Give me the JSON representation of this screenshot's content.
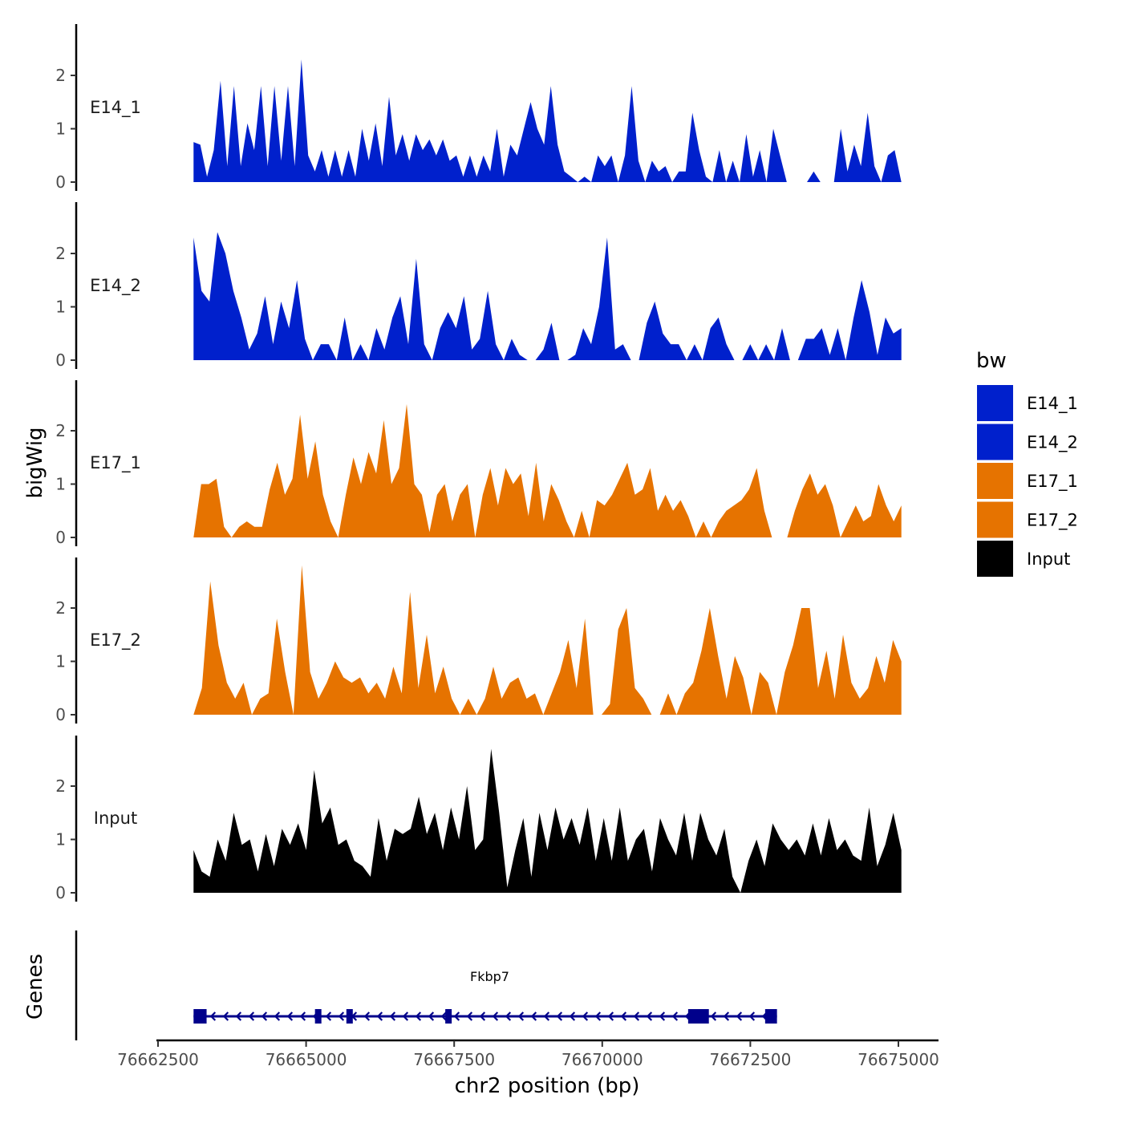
{
  "chart_data": {
    "type": "area",
    "title": "",
    "ylabel": "bigWig",
    "xlabel": "chr2 position (bp)",
    "ylim": [
      0,
      2.9
    ],
    "yticks": [
      0,
      1,
      2
    ],
    "xlim": [
      76662300,
      76675700
    ],
    "xticks": [
      76662500,
      76665000,
      76667500,
      76670000,
      76672500,
      76675000
    ],
    "xtick_labels": [
      "76662500",
      "76665000",
      "76667500",
      "76670000",
      "76672500",
      "76675000"
    ],
    "x_start": 76663100,
    "x_end": 76675050,
    "legend_title": "bw",
    "tracks": [
      {
        "name": "E14_1",
        "color": "#0020CC",
        "values": [
          0.75,
          0.7,
          0.1,
          0.6,
          1.9,
          0.3,
          1.8,
          0.3,
          1.1,
          0.6,
          1.8,
          0.3,
          1.8,
          0.4,
          1.8,
          0.3,
          2.3,
          0.5,
          0.2,
          0.6,
          0.1,
          0.6,
          0.1,
          0.6,
          0.1,
          1.0,
          0.4,
          1.1,
          0.3,
          1.6,
          0.5,
          0.9,
          0.4,
          0.9,
          0.6,
          0.8,
          0.5,
          0.8,
          0.4,
          0.5,
          0.1,
          0.5,
          0.1,
          0.5,
          0.2,
          1.0,
          0.1,
          0.7,
          0.5,
          1.0,
          1.5,
          1.0,
          0.7,
          1.8,
          0.7,
          0.2,
          0.1,
          0.0,
          0.1,
          0.0,
          0.5,
          0.3,
          0.5,
          0.0,
          0.5,
          1.8,
          0.4,
          0.0,
          0.4,
          0.2,
          0.3,
          0.0,
          0.2,
          0.2,
          1.3,
          0.6,
          0.1,
          0.0,
          0.6,
          0.0,
          0.4,
          0.0,
          0.9,
          0.1,
          0.6,
          0.0,
          1.0,
          0.5,
          0.0,
          0.0,
          0.0,
          0.0,
          0.2,
          0.0,
          0.0,
          0.0,
          1.0,
          0.2,
          0.7,
          0.3,
          1.3,
          0.3,
          0.0,
          0.5,
          0.6,
          0.0
        ]
      },
      {
        "name": "E14_2",
        "color": "#0020CC",
        "values": [
          2.3,
          1.3,
          1.1,
          2.4,
          2.0,
          1.3,
          0.8,
          0.2,
          0.5,
          1.2,
          0.3,
          1.1,
          0.6,
          1.5,
          0.4,
          0.0,
          0.3,
          0.3,
          0.0,
          0.8,
          0.0,
          0.3,
          0.0,
          0.6,
          0.2,
          0.8,
          1.2,
          0.3,
          1.9,
          0.3,
          0.0,
          0.6,
          0.9,
          0.6,
          1.2,
          0.2,
          0.4,
          1.3,
          0.3,
          0.0,
          0.4,
          0.1,
          0.0,
          0.0,
          0.2,
          0.7,
          0.0,
          0.0,
          0.1,
          0.6,
          0.3,
          1.0,
          2.3,
          0.2,
          0.3,
          0.0,
          0.0,
          0.7,
          1.1,
          0.5,
          0.3,
          0.3,
          0.0,
          0.3,
          0.0,
          0.6,
          0.8,
          0.3,
          0.0,
          0.0,
          0.3,
          0.0,
          0.3,
          0.0,
          0.6,
          0.0,
          0.0,
          0.4,
          0.4,
          0.6,
          0.1,
          0.6,
          0.0,
          0.8,
          1.5,
          0.9,
          0.1,
          0.8,
          0.5,
          0.6
        ]
      },
      {
        "name": "E17_1",
        "color": "#E67300",
        "values": [
          0.0,
          1.0,
          1.0,
          1.1,
          0.2,
          0.0,
          0.2,
          0.3,
          0.2,
          0.2,
          0.9,
          1.4,
          0.8,
          1.1,
          2.3,
          1.1,
          1.8,
          0.8,
          0.3,
          0.0,
          0.8,
          1.5,
          1.0,
          1.6,
          1.2,
          2.2,
          1.0,
          1.3,
          2.5,
          1.0,
          0.8,
          0.1,
          0.8,
          1.0,
          0.3,
          0.8,
          1.0,
          0.0,
          0.8,
          1.3,
          0.6,
          1.3,
          1.0,
          1.2,
          0.4,
          1.4,
          0.3,
          1.0,
          0.7,
          0.3,
          0.0,
          0.5,
          0.0,
          0.7,
          0.6,
          0.8,
          1.1,
          1.4,
          0.8,
          0.9,
          1.3,
          0.5,
          0.8,
          0.5,
          0.7,
          0.4,
          0.0,
          0.3,
          0.0,
          0.3,
          0.5,
          0.6,
          0.7,
          0.9,
          1.3,
          0.5,
          0.0,
          0.0,
          0.0,
          0.5,
          0.9,
          1.2,
          0.8,
          1.0,
          0.6,
          0.0,
          0.3,
          0.6,
          0.3,
          0.4,
          1.0,
          0.6,
          0.3,
          0.6
        ]
      },
      {
        "name": "E17_2",
        "color": "#E67300",
        "values": [
          0.0,
          0.5,
          2.5,
          1.3,
          0.6,
          0.3,
          0.6,
          0.0,
          0.3,
          0.4,
          1.8,
          0.8,
          0.0,
          2.8,
          0.8,
          0.3,
          0.6,
          1.0,
          0.7,
          0.6,
          0.7,
          0.4,
          0.6,
          0.3,
          0.9,
          0.4,
          2.3,
          0.5,
          1.5,
          0.4,
          0.9,
          0.3,
          0.0,
          0.3,
          0.0,
          0.3,
          0.9,
          0.3,
          0.6,
          0.7,
          0.3,
          0.4,
          0.0,
          0.4,
          0.8,
          1.4,
          0.5,
          1.8,
          0.0,
          0.0,
          0.2,
          1.6,
          2.0,
          0.5,
          0.3,
          0.0,
          0.0,
          0.4,
          0.0,
          0.4,
          0.6,
          1.2,
          2.0,
          1.1,
          0.3,
          1.1,
          0.7,
          0.0,
          0.8,
          0.6,
          0.0,
          0.8,
          1.3,
          2.0,
          2.0,
          0.5,
          1.2,
          0.3,
          1.5,
          0.6,
          0.3,
          0.5,
          1.1,
          0.6,
          1.4,
          1.0
        ]
      },
      {
        "name": "Input",
        "color": "#000000",
        "values": [
          0.8,
          0.4,
          0.3,
          1.0,
          0.6,
          1.5,
          0.9,
          1.0,
          0.4,
          1.1,
          0.5,
          1.2,
          0.9,
          1.3,
          0.8,
          2.3,
          1.3,
          1.6,
          0.9,
          1.0,
          0.6,
          0.5,
          0.3,
          1.4,
          0.6,
          1.2,
          1.1,
          1.2,
          1.8,
          1.1,
          1.5,
          0.8,
          1.6,
          1.0,
          2.0,
          0.8,
          1.0,
          2.7,
          1.5,
          0.1,
          0.8,
          1.4,
          0.3,
          1.5,
          0.8,
          1.6,
          1.0,
          1.4,
          0.9,
          1.6,
          0.6,
          1.4,
          0.6,
          1.6,
          0.6,
          1.0,
          1.2,
          0.4,
          1.4,
          1.0,
          0.7,
          1.5,
          0.6,
          1.5,
          1.0,
          0.7,
          1.2,
          0.3,
          0.0,
          0.6,
          1.0,
          0.5,
          1.3,
          1.0,
          0.8,
          1.0,
          0.7,
          1.3,
          0.7,
          1.4,
          0.8,
          1.0,
          0.7,
          0.6,
          1.6,
          0.5,
          0.9,
          1.5,
          0.8
        ]
      }
    ],
    "gene_track": {
      "label": "Genes",
      "gene_name": "Fkbp7",
      "color": "#00008B",
      "strand": "-",
      "start": 76663100,
      "end": 76672950,
      "exons": [
        [
          76663100,
          76663320
        ],
        [
          76665150,
          76665230
        ],
        [
          76665680,
          76665760
        ],
        [
          76667350,
          76667420
        ],
        [
          76671450,
          76671800
        ],
        [
          76672750,
          76672950
        ]
      ]
    }
  },
  "legend": {
    "title": "bw",
    "items": [
      {
        "label": "E14_1",
        "color": "#0020CC"
      },
      {
        "label": "E14_2",
        "color": "#0020CC"
      },
      {
        "label": "E17_1",
        "color": "#E67300"
      },
      {
        "label": "E17_2",
        "color": "#E67300"
      },
      {
        "label": "Input",
        "color": "#000000"
      }
    ]
  }
}
